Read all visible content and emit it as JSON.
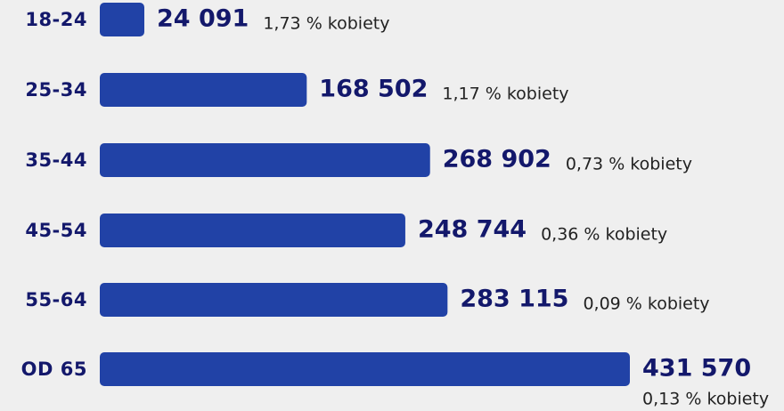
{
  "chart_data": {
    "type": "hbar",
    "categories": [
      "18-24",
      "25-34",
      "35-44",
      "45-54",
      "55-64",
      "OD 65"
    ],
    "values": [
      24091,
      168502,
      268902,
      248744,
      283115,
      431570
    ],
    "value_labels": [
      "24 091",
      "168 502",
      "268 902",
      "248 744",
      "283 115",
      "431 570"
    ],
    "annotations": [
      "1,73 % kobiety",
      "1,17 % kobiety",
      "0,73 % kobiety",
      "0,36 % kobiety",
      "0,09 % kobiety",
      "0,13 % kobiety"
    ],
    "color": "#2142a6"
  }
}
